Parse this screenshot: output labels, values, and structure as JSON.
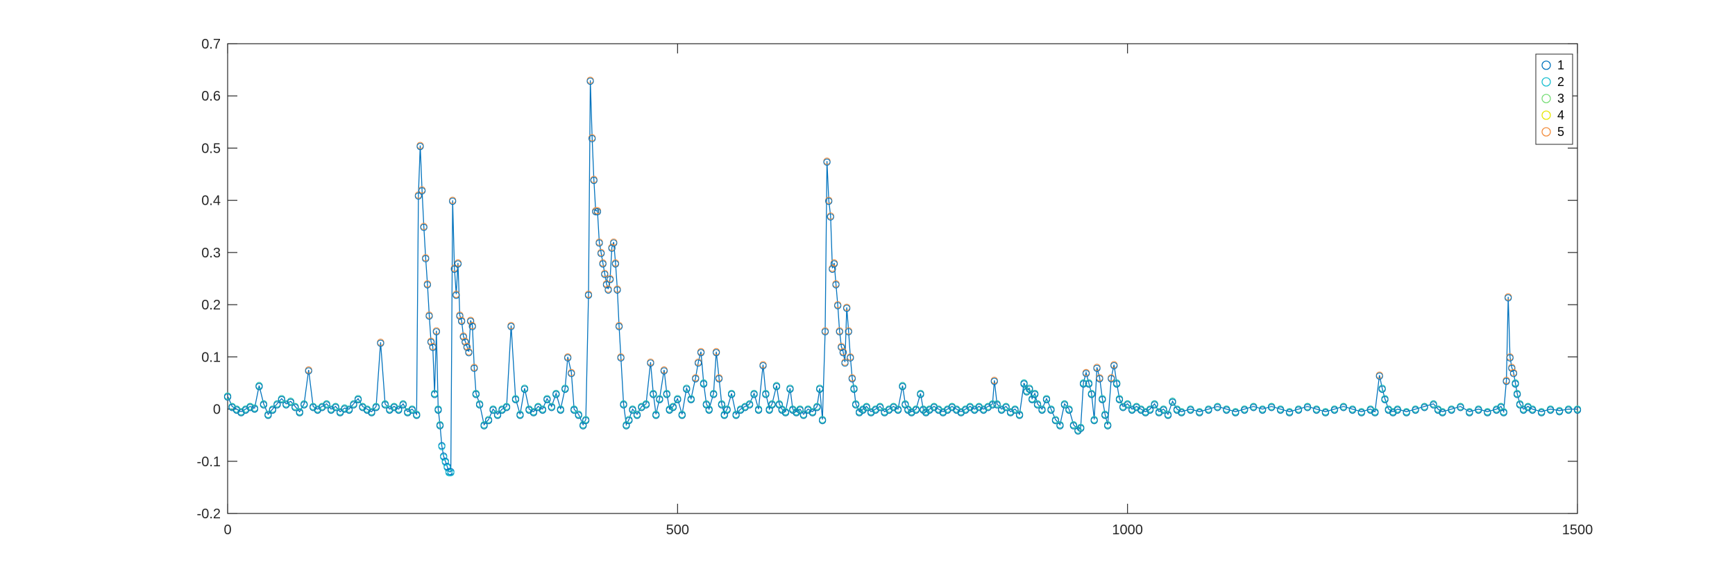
{
  "chart_data": {
    "type": "line",
    "title": "",
    "xlabel": "",
    "ylabel": "",
    "xlim": [
      0,
      1500
    ],
    "ylim": [
      -0.2,
      0.7
    ],
    "x_ticks": [
      0,
      500,
      1000,
      1500
    ],
    "x_tick_labels": [
      "0",
      "500",
      "1000",
      "1500"
    ],
    "y_ticks": [
      -0.2,
      -0.1,
      0,
      0.1,
      0.2,
      0.3,
      0.4,
      0.5,
      0.6,
      0.7
    ],
    "y_tick_labels": [
      "-0.2",
      "-0.1",
      "0",
      "0.1",
      "0.2",
      "0.3",
      "0.4",
      "0.5",
      "0.6",
      "0.7"
    ],
    "grid": false,
    "legend_position": "top-right",
    "line_color": "#0072bd",
    "series": [
      {
        "name": "1",
        "color": "#0072bd",
        "marker": "circle"
      },
      {
        "name": "2",
        "color": "#17becf",
        "marker": "circle"
      },
      {
        "name": "3",
        "color": "#77dd77",
        "marker": "circle"
      },
      {
        "name": "4",
        "color": "#e6e600",
        "marker": "circle"
      },
      {
        "name": "5",
        "color": "#f28c3c",
        "marker": "circle"
      }
    ],
    "points": [
      [
        0,
        0.025
      ],
      [
        5,
        0.005
      ],
      [
        10,
        0.0
      ],
      [
        15,
        -0.005
      ],
      [
        20,
        0.0
      ],
      [
        25,
        0.005
      ],
      [
        30,
        0.002
      ],
      [
        35,
        0.045
      ],
      [
        40,
        0.01
      ],
      [
        45,
        -0.01
      ],
      [
        50,
        0.0
      ],
      [
        55,
        0.01
      ],
      [
        60,
        0.02
      ],
      [
        65,
        0.01
      ],
      [
        70,
        0.015
      ],
      [
        75,
        0.005
      ],
      [
        80,
        -0.005
      ],
      [
        85,
        0.01
      ],
      [
        90,
        0.075
      ],
      [
        95,
        0.005
      ],
      [
        100,
        0.0
      ],
      [
        105,
        0.005
      ],
      [
        110,
        0.01
      ],
      [
        115,
        0.0
      ],
      [
        120,
        0.005
      ],
      [
        125,
        -0.005
      ],
      [
        130,
        0.002
      ],
      [
        135,
        0.0
      ],
      [
        140,
        0.01
      ],
      [
        145,
        0.02
      ],
      [
        150,
        0.005
      ],
      [
        155,
        0.0
      ],
      [
        160,
        -0.005
      ],
      [
        165,
        0.005
      ],
      [
        170,
        0.128
      ],
      [
        175,
        0.01
      ],
      [
        180,
        0.0
      ],
      [
        185,
        0.005
      ],
      [
        190,
        0.0
      ],
      [
        195,
        0.01
      ],
      [
        200,
        -0.005
      ],
      [
        205,
        0.0
      ],
      [
        210,
        -0.01
      ],
      [
        212,
        0.41
      ],
      [
        214,
        0.505
      ],
      [
        216,
        0.42
      ],
      [
        218,
        0.35
      ],
      [
        220,
        0.29
      ],
      [
        222,
        0.24
      ],
      [
        224,
        0.18
      ],
      [
        226,
        0.13
      ],
      [
        228,
        0.12
      ],
      [
        230,
        0.03
      ],
      [
        232,
        0.15
      ],
      [
        234,
        0.0
      ],
      [
        236,
        -0.03
      ],
      [
        238,
        -0.07
      ],
      [
        240,
        -0.09
      ],
      [
        242,
        -0.1
      ],
      [
        244,
        -0.11
      ],
      [
        246,
        -0.12
      ],
      [
        248,
        -0.12
      ],
      [
        250,
        0.4
      ],
      [
        252,
        0.27
      ],
      [
        254,
        0.22
      ],
      [
        256,
        0.28
      ],
      [
        258,
        0.18
      ],
      [
        260,
        0.17
      ],
      [
        262,
        0.14
      ],
      [
        264,
        0.13
      ],
      [
        266,
        0.12
      ],
      [
        268,
        0.11
      ],
      [
        270,
        0.17
      ],
      [
        272,
        0.16
      ],
      [
        274,
        0.08
      ],
      [
        276,
        0.03
      ],
      [
        280,
        0.01
      ],
      [
        285,
        -0.03
      ],
      [
        290,
        -0.02
      ],
      [
        295,
        0.0
      ],
      [
        300,
        -0.01
      ],
      [
        305,
        0.0
      ],
      [
        310,
        0.005
      ],
      [
        315,
        0.16
      ],
      [
        320,
        0.02
      ],
      [
        325,
        -0.01
      ],
      [
        330,
        0.04
      ],
      [
        335,
        0.0
      ],
      [
        340,
        -0.005
      ],
      [
        345,
        0.005
      ],
      [
        350,
        0.0
      ],
      [
        355,
        0.02
      ],
      [
        360,
        0.005
      ],
      [
        365,
        0.03
      ],
      [
        370,
        0.0
      ],
      [
        375,
        0.04
      ],
      [
        378,
        0.1
      ],
      [
        382,
        0.07
      ],
      [
        385,
        0.0
      ],
      [
        390,
        -0.01
      ],
      [
        395,
        -0.03
      ],
      [
        398,
        -0.02
      ],
      [
        401,
        0.22
      ],
      [
        403,
        0.63
      ],
      [
        405,
        0.52
      ],
      [
        407,
        0.44
      ],
      [
        409,
        0.38
      ],
      [
        411,
        0.38
      ],
      [
        413,
        0.32
      ],
      [
        415,
        0.3
      ],
      [
        417,
        0.28
      ],
      [
        419,
        0.26
      ],
      [
        421,
        0.24
      ],
      [
        423,
        0.23
      ],
      [
        425,
        0.25
      ],
      [
        427,
        0.31
      ],
      [
        429,
        0.32
      ],
      [
        431,
        0.28
      ],
      [
        433,
        0.23
      ],
      [
        435,
        0.16
      ],
      [
        437,
        0.1
      ],
      [
        440,
        0.01
      ],
      [
        443,
        -0.03
      ],
      [
        446,
        -0.02
      ],
      [
        450,
        0.0
      ],
      [
        455,
        -0.01
      ],
      [
        460,
        0.005
      ],
      [
        465,
        0.01
      ],
      [
        470,
        0.09
      ],
      [
        473,
        0.03
      ],
      [
        476,
        -0.01
      ],
      [
        480,
        0.02
      ],
      [
        485,
        0.075
      ],
      [
        488,
        0.03
      ],
      [
        491,
        0.0
      ],
      [
        495,
        0.005
      ],
      [
        500,
        0.02
      ],
      [
        505,
        -0.01
      ],
      [
        510,
        0.04
      ],
      [
        515,
        0.02
      ],
      [
        520,
        0.06
      ],
      [
        523,
        0.09
      ],
      [
        526,
        0.11
      ],
      [
        529,
        0.05
      ],
      [
        532,
        0.01
      ],
      [
        535,
        0.0
      ],
      [
        540,
        0.03
      ],
      [
        543,
        0.11
      ],
      [
        546,
        0.06
      ],
      [
        549,
        0.01
      ],
      [
        552,
        -0.01
      ],
      [
        555,
        0.0
      ],
      [
        560,
        0.03
      ],
      [
        565,
        -0.01
      ],
      [
        570,
        0.0
      ],
      [
        575,
        0.005
      ],
      [
        580,
        0.01
      ],
      [
        585,
        0.03
      ],
      [
        590,
        0.0
      ],
      [
        595,
        0.085
      ],
      [
        598,
        0.03
      ],
      [
        602,
        0.0
      ],
      [
        605,
        0.01
      ],
      [
        610,
        0.045
      ],
      [
        613,
        0.01
      ],
      [
        616,
        0.0
      ],
      [
        620,
        -0.005
      ],
      [
        625,
        0.04
      ],
      [
        628,
        0.0
      ],
      [
        632,
        -0.005
      ],
      [
        636,
        0.0
      ],
      [
        640,
        -0.01
      ],
      [
        645,
        0.0
      ],
      [
        650,
        -0.005
      ],
      [
        655,
        0.005
      ],
      [
        658,
        0.04
      ],
      [
        661,
        -0.02
      ],
      [
        664,
        0.15
      ],
      [
        666,
        0.475
      ],
      [
        668,
        0.4
      ],
      [
        670,
        0.37
      ],
      [
        672,
        0.27
      ],
      [
        674,
        0.28
      ],
      [
        676,
        0.24
      ],
      [
        678,
        0.2
      ],
      [
        680,
        0.15
      ],
      [
        682,
        0.12
      ],
      [
        684,
        0.11
      ],
      [
        686,
        0.09
      ],
      [
        688,
        0.195
      ],
      [
        690,
        0.15
      ],
      [
        692,
        0.1
      ],
      [
        694,
        0.06
      ],
      [
        696,
        0.04
      ],
      [
        698,
        0.01
      ],
      [
        702,
        -0.005
      ],
      [
        706,
        0.0
      ],
      [
        710,
        0.005
      ],
      [
        715,
        -0.005
      ],
      [
        720,
        0.0
      ],
      [
        725,
        0.005
      ],
      [
        730,
        -0.005
      ],
      [
        735,
        0.0
      ],
      [
        740,
        0.005
      ],
      [
        745,
        0.0
      ],
      [
        750,
        0.045
      ],
      [
        753,
        0.01
      ],
      [
        756,
        0.0
      ],
      [
        760,
        -0.005
      ],
      [
        765,
        0.0
      ],
      [
        770,
        0.03
      ],
      [
        773,
        0.0
      ],
      [
        776,
        -0.005
      ],
      [
        780,
        0.0
      ],
      [
        785,
        0.005
      ],
      [
        790,
        0.0
      ],
      [
        795,
        -0.005
      ],
      [
        800,
        0.0
      ],
      [
        805,
        0.005
      ],
      [
        810,
        0.0
      ],
      [
        815,
        -0.005
      ],
      [
        820,
        0.0
      ],
      [
        825,
        0.005
      ],
      [
        830,
        0.0
      ],
      [
        835,
        0.005
      ],
      [
        840,
        0.0
      ],
      [
        845,
        0.005
      ],
      [
        850,
        0.01
      ],
      [
        852,
        0.055
      ],
      [
        855,
        0.01
      ],
      [
        860,
        0.0
      ],
      [
        865,
        0.005
      ],
      [
        870,
        -0.005
      ],
      [
        875,
        0.0
      ],
      [
        880,
        -0.01
      ],
      [
        885,
        0.05
      ],
      [
        888,
        0.035
      ],
      [
        891,
        0.04
      ],
      [
        894,
        0.02
      ],
      [
        897,
        0.03
      ],
      [
        900,
        0.01
      ],
      [
        905,
        0.0
      ],
      [
        910,
        0.02
      ],
      [
        915,
        0.0
      ],
      [
        920,
        -0.02
      ],
      [
        925,
        -0.03
      ],
      [
        930,
        0.01
      ],
      [
        935,
        0.0
      ],
      [
        940,
        -0.03
      ],
      [
        945,
        -0.04
      ],
      [
        948,
        -0.035
      ],
      [
        951,
        0.05
      ],
      [
        954,
        0.07
      ],
      [
        957,
        0.05
      ],
      [
        960,
        0.03
      ],
      [
        963,
        -0.02
      ],
      [
        966,
        0.08
      ],
      [
        969,
        0.06
      ],
      [
        972,
        0.02
      ],
      [
        975,
        -0.01
      ],
      [
        978,
        -0.03
      ],
      [
        982,
        0.06
      ],
      [
        985,
        0.085
      ],
      [
        988,
        0.05
      ],
      [
        991,
        0.02
      ],
      [
        995,
        0.005
      ],
      [
        1000,
        0.01
      ],
      [
        1005,
        0.0
      ],
      [
        1010,
        0.005
      ],
      [
        1015,
        0.0
      ],
      [
        1020,
        -0.005
      ],
      [
        1025,
        0.0
      ],
      [
        1030,
        0.01
      ],
      [
        1035,
        -0.005
      ],
      [
        1040,
        0.0
      ],
      [
        1045,
        -0.01
      ],
      [
        1050,
        0.015
      ],
      [
        1055,
        0.0
      ],
      [
        1060,
        -0.005
      ],
      [
        1070,
        0.0
      ],
      [
        1080,
        -0.005
      ],
      [
        1090,
        0.0
      ],
      [
        1100,
        0.005
      ],
      [
        1110,
        0.0
      ],
      [
        1120,
        -0.005
      ],
      [
        1130,
        0.0
      ],
      [
        1140,
        0.005
      ],
      [
        1150,
        0.0
      ],
      [
        1160,
        0.005
      ],
      [
        1170,
        0.0
      ],
      [
        1180,
        -0.005
      ],
      [
        1190,
        0.0
      ],
      [
        1200,
        0.005
      ],
      [
        1210,
        0.0
      ],
      [
        1220,
        -0.005
      ],
      [
        1230,
        0.0
      ],
      [
        1240,
        0.005
      ],
      [
        1250,
        0.0
      ],
      [
        1260,
        -0.005
      ],
      [
        1270,
        0.0
      ],
      [
        1275,
        -0.005
      ],
      [
        1280,
        0.065
      ],
      [
        1283,
        0.04
      ],
      [
        1286,
        0.02
      ],
      [
        1290,
        0.0
      ],
      [
        1295,
        -0.005
      ],
      [
        1300,
        0.0
      ],
      [
        1310,
        -0.005
      ],
      [
        1320,
        0.0
      ],
      [
        1330,
        0.005
      ],
      [
        1340,
        0.01
      ],
      [
        1345,
        0.0
      ],
      [
        1350,
        -0.005
      ],
      [
        1360,
        0.0
      ],
      [
        1370,
        0.005
      ],
      [
        1380,
        -0.005
      ],
      [
        1390,
        0.0
      ],
      [
        1400,
        -0.005
      ],
      [
        1410,
        0.0
      ],
      [
        1415,
        0.005
      ],
      [
        1418,
        -0.005
      ],
      [
        1421,
        0.055
      ],
      [
        1423,
        0.215
      ],
      [
        1425,
        0.1
      ],
      [
        1427,
        0.08
      ],
      [
        1429,
        0.07
      ],
      [
        1431,
        0.05
      ],
      [
        1433,
        0.03
      ],
      [
        1436,
        0.01
      ],
      [
        1440,
        0.0
      ],
      [
        1445,
        0.005
      ],
      [
        1450,
        0.0
      ],
      [
        1460,
        -0.005
      ],
      [
        1470,
        0.0
      ],
      [
        1480,
        -0.003
      ],
      [
        1490,
        0.0
      ],
      [
        1500,
        0.0
      ]
    ]
  }
}
